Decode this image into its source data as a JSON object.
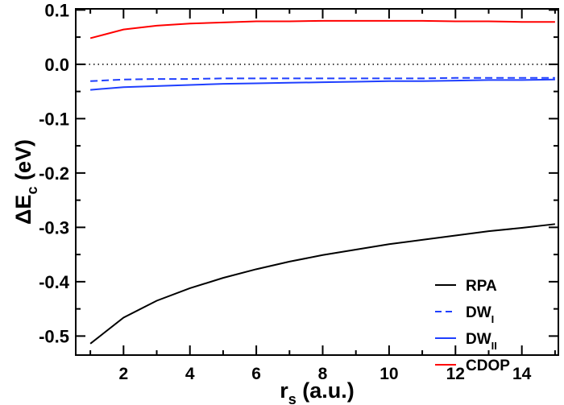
{
  "chart_data": {
    "type": "line",
    "title": "",
    "xlabel": {
      "main": "r",
      "sub": "s",
      "rest": " (a.u.)"
    },
    "ylabel": {
      "main": "ΔE",
      "sub": "c",
      "rest": " (eV)"
    },
    "xlim": [
      0.56,
      15.1
    ],
    "ylim": [
      -0.535,
      0.102
    ],
    "xticks": [
      2,
      4,
      6,
      8,
      10,
      12,
      14
    ],
    "xtick_labels": [
      "2",
      "4",
      "6",
      "8",
      "10",
      "12",
      "14"
    ],
    "yticks": [
      0.1,
      0.0,
      -0.1,
      -0.2,
      -0.3,
      -0.4,
      -0.5
    ],
    "ytick_labels": [
      "0.1",
      "0.0",
      "-0.1",
      "-0.2",
      "-0.3",
      "-0.4",
      "-0.5"
    ],
    "grid": false,
    "reference_line": {
      "y": 0.0,
      "style": "dotted",
      "color": "#000000"
    },
    "legend_placement": "bottom-right",
    "x": [
      1,
      2,
      3,
      4,
      5,
      6,
      7,
      8,
      9,
      10,
      11,
      12,
      13,
      14,
      15
    ],
    "series": [
      {
        "name": "RPA",
        "label_main": "RPA",
        "label_sub": "",
        "color": "#000000",
        "dash": "solid",
        "values": [
          -0.514,
          -0.466,
          -0.435,
          -0.412,
          -0.393,
          -0.377,
          -0.363,
          -0.351,
          -0.341,
          -0.331,
          -0.323,
          -0.315,
          -0.307,
          -0.301,
          -0.294
        ]
      },
      {
        "name": "DWI",
        "label_main": "DW",
        "label_sub": "I",
        "color": "#1f3fff",
        "dash": "dashed",
        "values": [
          -0.031,
          -0.028,
          -0.027,
          -0.027,
          -0.026,
          -0.026,
          -0.026,
          -0.026,
          -0.026,
          -0.026,
          -0.026,
          -0.025,
          -0.025,
          -0.025,
          -0.025
        ]
      },
      {
        "name": "DWII",
        "label_main": "DW",
        "label_sub": "II",
        "color": "#1f3fff",
        "dash": "solid",
        "values": [
          -0.047,
          -0.042,
          -0.04,
          -0.038,
          -0.036,
          -0.035,
          -0.034,
          -0.033,
          -0.032,
          -0.031,
          -0.031,
          -0.03,
          -0.029,
          -0.029,
          -0.028
        ]
      },
      {
        "name": "CDOP",
        "label_main": "CDOP",
        "label_sub": "",
        "color": "#ff0000",
        "dash": "solid",
        "values": [
          0.048,
          0.064,
          0.071,
          0.075,
          0.077,
          0.079,
          0.079,
          0.08,
          0.08,
          0.08,
          0.08,
          0.079,
          0.079,
          0.078,
          0.078
        ]
      }
    ]
  }
}
